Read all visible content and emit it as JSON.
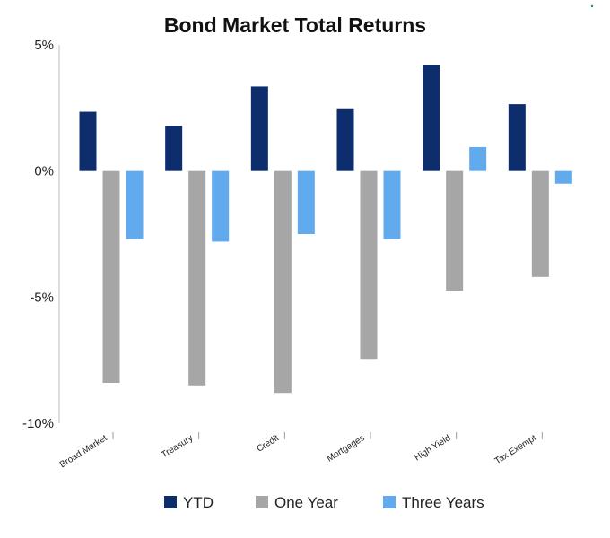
{
  "chart_data": {
    "type": "bar",
    "title": "Bond Market Total Returns",
    "xlabel": "",
    "ylabel": "",
    "categories": [
      "Broad Market",
      "Treasury",
      "Credit",
      "Mortgages",
      "High Yield",
      "Tax Exempt"
    ],
    "series": [
      {
        "name": "YTD",
        "color": "#0d2d6c",
        "values": [
          2.35,
          1.8,
          3.35,
          2.45,
          4.2,
          2.65
        ]
      },
      {
        "name": "One Year",
        "color": "#a6a6a6",
        "values": [
          -8.4,
          -8.5,
          -8.8,
          -7.45,
          -4.75,
          -4.2
        ]
      },
      {
        "name": "Three Years",
        "color": "#62aaee",
        "values": [
          -2.7,
          -2.8,
          -2.5,
          -2.7,
          0.95,
          -0.5
        ]
      }
    ],
    "ylim": [
      -10,
      5
    ],
    "yticks": [
      5,
      0,
      -5,
      -10
    ],
    "ytick_labels": [
      "5%",
      "0%",
      "-5%",
      "-10%"
    ],
    "grid": false,
    "legend_position": "bottom"
  }
}
